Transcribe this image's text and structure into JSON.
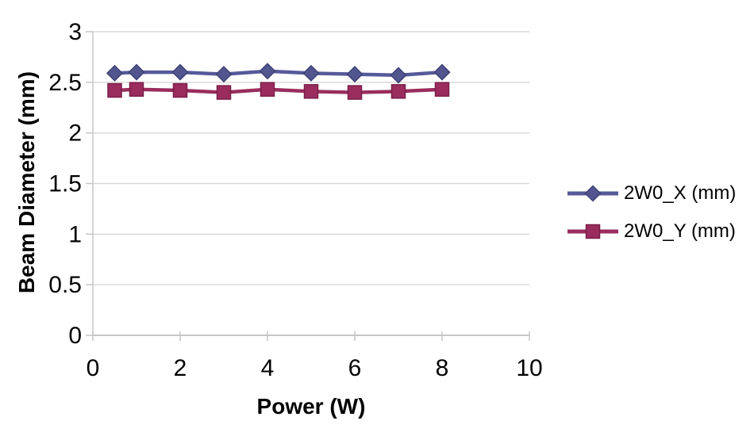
{
  "chart_data": {
    "type": "line",
    "title": "",
    "xlabel": "Power (W)",
    "ylabel": "Beam Diameter (mm)",
    "x": [
      0.5,
      1,
      2,
      3,
      4,
      5,
      6,
      7,
      8
    ],
    "series": [
      {
        "name": "2W0_X (mm)",
        "values": [
          2.59,
          2.6,
          2.6,
          2.58,
          2.61,
          2.59,
          2.58,
          2.57,
          2.6
        ],
        "line_color": "#565A99",
        "marker": "diamond",
        "marker_fill": "#52568F",
        "marker_edge": "#3F4276"
      },
      {
        "name": "2W0_Y (mm)",
        "values": [
          2.42,
          2.43,
          2.42,
          2.4,
          2.43,
          2.41,
          2.4,
          2.41,
          2.43
        ],
        "line_color": "#9A2D5E",
        "marker": "square",
        "marker_fill": "#9A2D5E",
        "marker_edge": "#7A1F48"
      }
    ],
    "xlim": [
      0,
      10
    ],
    "ylim": [
      0,
      3
    ],
    "xticks": [
      0,
      2,
      4,
      6,
      8,
      10
    ],
    "xticklabels": [
      "0",
      "2",
      "4",
      "6",
      "8",
      "10"
    ],
    "yticks": [
      0,
      0.5,
      1,
      1.5,
      2,
      2.5,
      3
    ],
    "yticklabels": [
      "0",
      "0.5",
      "1",
      "1.5",
      "2",
      "2.5",
      "3"
    ],
    "grid": "horizontal",
    "legend_position": "right",
    "colors": {
      "background": "#FFFFFF",
      "gridline": "#D9D9D9",
      "axis": "#C6C6C6",
      "tick": "#C6C6C6",
      "text": "#000000"
    }
  }
}
